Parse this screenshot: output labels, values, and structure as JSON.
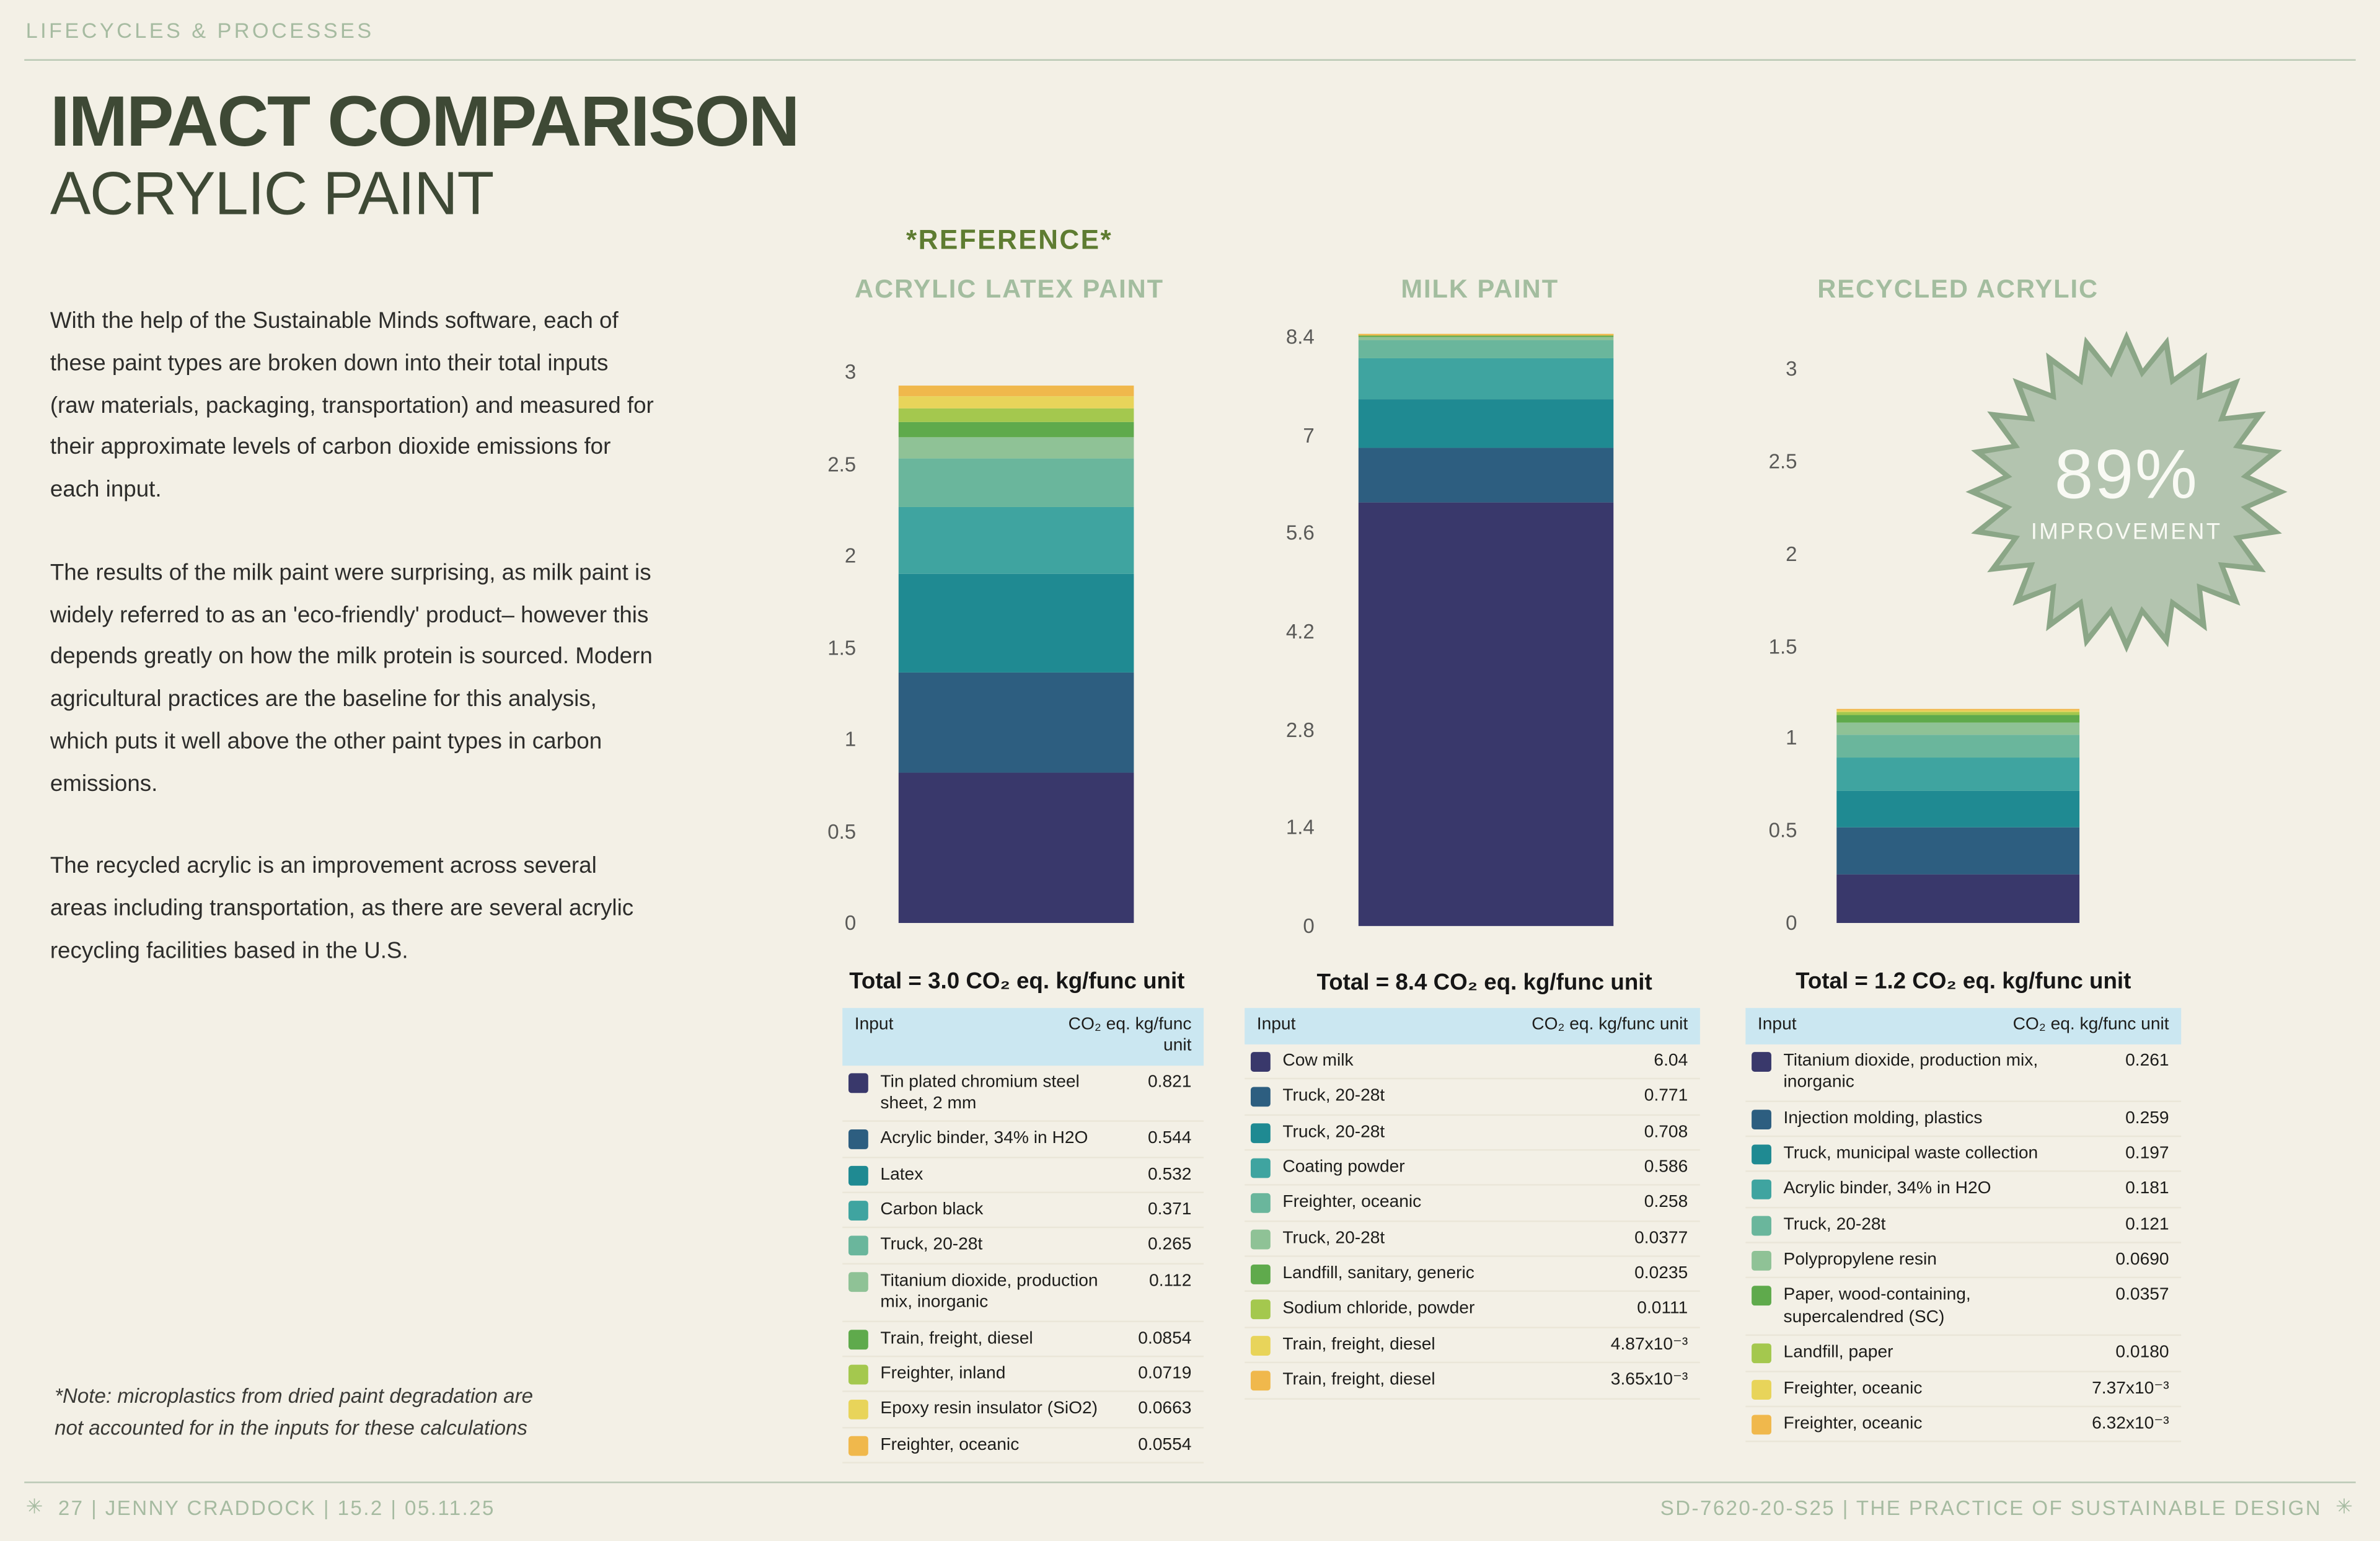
{
  "header": {
    "eyebrow": "LIFECYCLES & PROCESSES",
    "title_line1": "IMPACT COMPARISON",
    "title_line2": "ACRYLIC PAINT"
  },
  "intro": {
    "paragraphs": [
      "With the help of the Sustainable Minds software, each of these paint types are broken down into their total inputs (raw materials, packaging, transportation) and measured for their approximate levels of carbon dioxide emissions for each input.",
      "The results of the milk paint were surprising, as milk paint is widely referred to as an 'eco-friendly' product– however this depends greatly on how the milk protein is sourced. Modern agricultural practices are the baseline for this analysis, which puts it well above the other paint types in carbon emissions.",
      "The recycled acrylic is an improvement across several areas including transportation, as there are several acrylic recycling facilities based in the U.S."
    ],
    "note": "*Note: microplastics from dried paint degradation are not accounted for in the inputs for these calculations"
  },
  "reference_label": "*REFERENCE*",
  "badge": {
    "value": "89%",
    "label": "IMPROVEMENT",
    "fill": "#b3c4af",
    "edge": "#8ba687"
  },
  "table_header": {
    "input": "Input",
    "value": "CO₂ eq. kg/func unit"
  },
  "palette": [
    "#39386b",
    "#2d5e80",
    "#1f8a92",
    "#3fa4a0",
    "#6ab69c",
    "#8fc296",
    "#5faa4c",
    "#a4c84e",
    "#e8d45a",
    "#f0b84c"
  ],
  "chart_data": [
    {
      "type": "bar",
      "title": "ACRYLIC LATEX PAINT",
      "total_label": "Total = 3.0 CO₂ eq. kg/func unit",
      "ylim": [
        0,
        3
      ],
      "yticks": [
        "0",
        "0.5",
        "1",
        "1.5",
        "2",
        "2.5",
        "3"
      ],
      "rows": [
        {
          "label": "Tin plated chromium steel sheet, 2 mm",
          "value": 0.821,
          "display": "0.821"
        },
        {
          "label": "Acrylic binder, 34% in H2O",
          "value": 0.544,
          "display": "0.544"
        },
        {
          "label": "Latex",
          "value": 0.532,
          "display": "0.532"
        },
        {
          "label": "Carbon black",
          "value": 0.371,
          "display": "0.371"
        },
        {
          "label": "Truck, 20-28t",
          "value": 0.265,
          "display": "0.265"
        },
        {
          "label": "Titanium dioxide, production mix, inorganic",
          "value": 0.112,
          "display": "0.112"
        },
        {
          "label": "Train, freight, diesel",
          "value": 0.0854,
          "display": "0.0854"
        },
        {
          "label": "Freighter, inland",
          "value": 0.0719,
          "display": "0.0719"
        },
        {
          "label": "Epoxy resin insulator (SiO2)",
          "value": 0.0663,
          "display": "0.0663"
        },
        {
          "label": "Freighter, oceanic",
          "value": 0.0554,
          "display": "0.0554"
        }
      ]
    },
    {
      "type": "bar",
      "title": "MILK PAINT",
      "total_label": "Total = 8.4 CO₂ eq. kg/func unit",
      "ylim": [
        0,
        8.4
      ],
      "yticks": [
        "0",
        "1.4",
        "2.8",
        "4.2",
        "5.6",
        "7",
        "8.4"
      ],
      "rows": [
        {
          "label": "Cow milk",
          "value": 6.04,
          "display": "6.04"
        },
        {
          "label": "Truck, 20-28t",
          "value": 0.771,
          "display": "0.771"
        },
        {
          "label": "Truck, 20-28t",
          "value": 0.708,
          "display": "0.708"
        },
        {
          "label": "Coating powder",
          "value": 0.586,
          "display": "0.586"
        },
        {
          "label": "Freighter, oceanic",
          "value": 0.258,
          "display": "0.258"
        },
        {
          "label": "Truck, 20-28t",
          "value": 0.0377,
          "display": "0.0377"
        },
        {
          "label": "Landfill, sanitary, generic",
          "value": 0.0235,
          "display": "0.0235"
        },
        {
          "label": "Sodium chloride, powder",
          "value": 0.0111,
          "display": "0.0111"
        },
        {
          "label": "Train, freight, diesel",
          "value": 0.00487,
          "display": "4.87x10⁻³"
        },
        {
          "label": "Train, freight, diesel",
          "value": 0.00365,
          "display": "3.65x10⁻³"
        }
      ]
    },
    {
      "type": "bar",
      "title": "RECYCLED ACRYLIC",
      "total_label": "Total = 1.2 CO₂ eq. kg/func unit",
      "ylim": [
        0,
        3
      ],
      "yticks": [
        "0",
        "0.5",
        "1",
        "1.5",
        "2",
        "2.5",
        "3"
      ],
      "rows": [
        {
          "label": "Titanium dioxide, production mix, inorganic",
          "value": 0.261,
          "display": "0.261"
        },
        {
          "label": "Injection molding, plastics",
          "value": 0.259,
          "display": "0.259"
        },
        {
          "label": "Truck, municipal waste collection",
          "value": 0.197,
          "display": "0.197"
        },
        {
          "label": "Acrylic binder, 34% in H2O",
          "value": 0.181,
          "display": "0.181"
        },
        {
          "label": "Truck, 20-28t",
          "value": 0.121,
          "display": "0.121"
        },
        {
          "label": "Polypropylene resin",
          "value": 0.069,
          "display": "0.0690"
        },
        {
          "label": "Paper, wood-containing, supercalendred (SC)",
          "value": 0.0357,
          "display": "0.0357"
        },
        {
          "label": "Landfill, paper",
          "value": 0.018,
          "display": "0.0180"
        },
        {
          "label": "Freighter, oceanic",
          "value": 0.00737,
          "display": "7.37x10⁻³"
        },
        {
          "label": "Freighter, oceanic",
          "value": 0.00632,
          "display": "6.32x10⁻³"
        }
      ]
    }
  ],
  "footer": {
    "left_icon": "✳",
    "left": "27  |  JENNY CRADDOCK   | 15.2 |  05.11.25",
    "right": "SD-7620-20-S25  |  THE PRACTICE OF SUSTAINABLE DESIGN",
    "right_icon": "✳"
  }
}
